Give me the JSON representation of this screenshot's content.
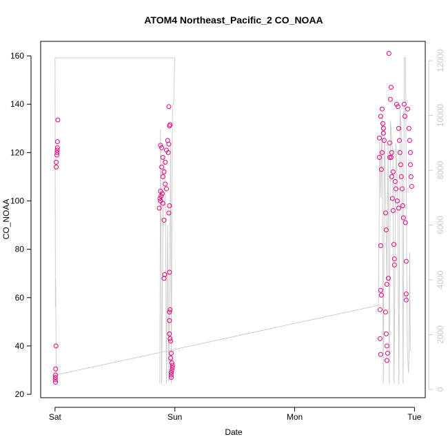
{
  "chart_data": {
    "type": "scatter",
    "title": "ATOM4 Northeast_Pacific_2 CO_NOAA",
    "xlabel": "Date",
    "ylabel": "CO_NOAA",
    "xlim": [
      -0.12,
      3.09
    ],
    "xticks": [
      {
        "value": 0,
        "label": "Sat"
      },
      {
        "value": 1,
        "label": "Sun"
      },
      {
        "value": 2,
        "label": "Mon"
      },
      {
        "value": 3,
        "label": "Tue"
      }
    ],
    "ylim": [
      18.6,
      166
    ],
    "yticks": [
      20,
      40,
      60,
      80,
      100,
      120,
      140,
      160
    ],
    "y2lim": [
      -302,
      12704
    ],
    "y2ticks": [
      0,
      2000,
      4000,
      6000,
      8000,
      10000,
      12000
    ],
    "y2color": "#c8c8c8",
    "series": [
      {
        "type": "scatter",
        "color": "#e6007e",
        "x": [
          0.023,
          0.02,
          0.02,
          0.018,
          0.017,
          0.015,
          0.01,
          0.01,
          0.008,
          0.005,
          0.004,
          0.003,
          0.002,
          0.004,
          0.95,
          0.96,
          0.955,
          0.94,
          0.95,
          0.88,
          0.89,
          0.93,
          0.945,
          0.9,
          0.92,
          0.89,
          0.91,
          0.9,
          0.92,
          0.93,
          0.88,
          0.895,
          0.885,
          0.875,
          0.88,
          0.9,
          0.955,
          0.87,
          0.95,
          0.91,
          0.955,
          0.915,
          0.91,
          0.96,
          0.955,
          0.955,
          0.955,
          0.96,
          0.965,
          0.97,
          0.965,
          0.975,
          0.98,
          0.98,
          0.975,
          0.97,
          0.97,
          0.97,
          2.718,
          2.718,
          2.724,
          2.713,
          2.713,
          2.718,
          2.718,
          2.73,
          2.736,
          2.741,
          2.741,
          2.73,
          2.707,
          2.707,
          2.724,
          2.747,
          2.759,
          2.764,
          2.759,
          2.764,
          2.77,
          2.776,
          2.77,
          2.787,
          2.805,
          2.799,
          2.793,
          2.805,
          2.81,
          2.816,
          2.822,
          2.828,
          2.833,
          2.833,
          2.851,
          2.862,
          2.868,
          2.874,
          2.879,
          2.885,
          2.89,
          2.897,
          2.902,
          2.908,
          2.914,
          2.92,
          2.925,
          2.931,
          2.931,
          2.931,
          2.943,
          2.954,
          2.96,
          2.966,
          2.971,
          2.977,
          2.966,
          2.845,
          2.856,
          2.868,
          2.839,
          2.793,
          2.81,
          2.822,
          2.782,
          2.77
        ],
        "values": [
          133.5,
          124.5,
          122,
          121,
          120,
          119,
          116,
          114,
          40,
          30.5,
          28,
          27,
          26,
          25,
          139,
          131.5,
          131,
          125,
          123.5,
          123,
          122,
          121,
          120,
          118,
          116,
          114,
          112,
          110,
          107,
          105,
          104,
          103,
          102,
          101,
          100,
          99,
          98,
          97,
          95,
          92,
          70.5,
          69.5,
          68,
          55,
          54,
          50.5,
          45,
          43,
          42,
          37,
          35,
          33,
          32,
          31,
          30,
          29,
          28,
          27,
          81.5,
          63,
          61,
          55,
          43,
          36.5,
          135,
          138,
          132,
          130,
          128,
          120,
          118,
          126,
          113,
          125,
          95,
          88,
          54,
          45,
          40,
          37,
          34,
          161,
          147,
          142,
          124,
          118,
          110,
          101,
          96,
          82,
          76,
          73.5,
          140,
          139,
          130,
          125,
          120,
          115,
          110,
          105,
          98,
          93,
          140,
          135,
          91,
          75,
          61.5,
          59,
          138,
          130,
          125,
          120,
          110,
          106,
          115,
          105,
          100,
          97,
          108,
          118,
          120,
          112,
          68,
          65.5
        ]
      },
      {
        "type": "line",
        "axis": "y2",
        "color": "#cccccc",
        "x": [
          0.003,
          0.0,
          0.995,
          1.0,
          0.99,
          0.98,
          0.97,
          0.965,
          0.95,
          0.94,
          0.93,
          0.92,
          0.905,
          0.89,
          0.88,
          0.875,
          null,
          0.005,
          0.01,
          2.7,
          2.71,
          2.72,
          2.73,
          2.74,
          2.75,
          2.77,
          2.78,
          2.79,
          2.8,
          2.82,
          2.83,
          2.845,
          2.86,
          2.87,
          2.88,
          2.895,
          2.905,
          2.915,
          2.925,
          2.94,
          2.95,
          2.955,
          2.96,
          2.965
        ],
        "values": [
          3000,
          12100,
          12100,
          12100,
          10500,
          10300,
          200,
          9000,
          300,
          6000,
          200,
          8000,
          8500,
          200,
          9500,
          200,
          null,
          4000,
          530,
          3070,
          9000,
          7000,
          10000,
          200,
          9500,
          4000,
          9000,
          200,
          9800,
          8500,
          200,
          9000,
          7000,
          200,
          10200,
          9000,
          200,
          12100,
          12100,
          1500,
          600,
          1200,
          5000,
          1400
        ]
      }
    ]
  }
}
